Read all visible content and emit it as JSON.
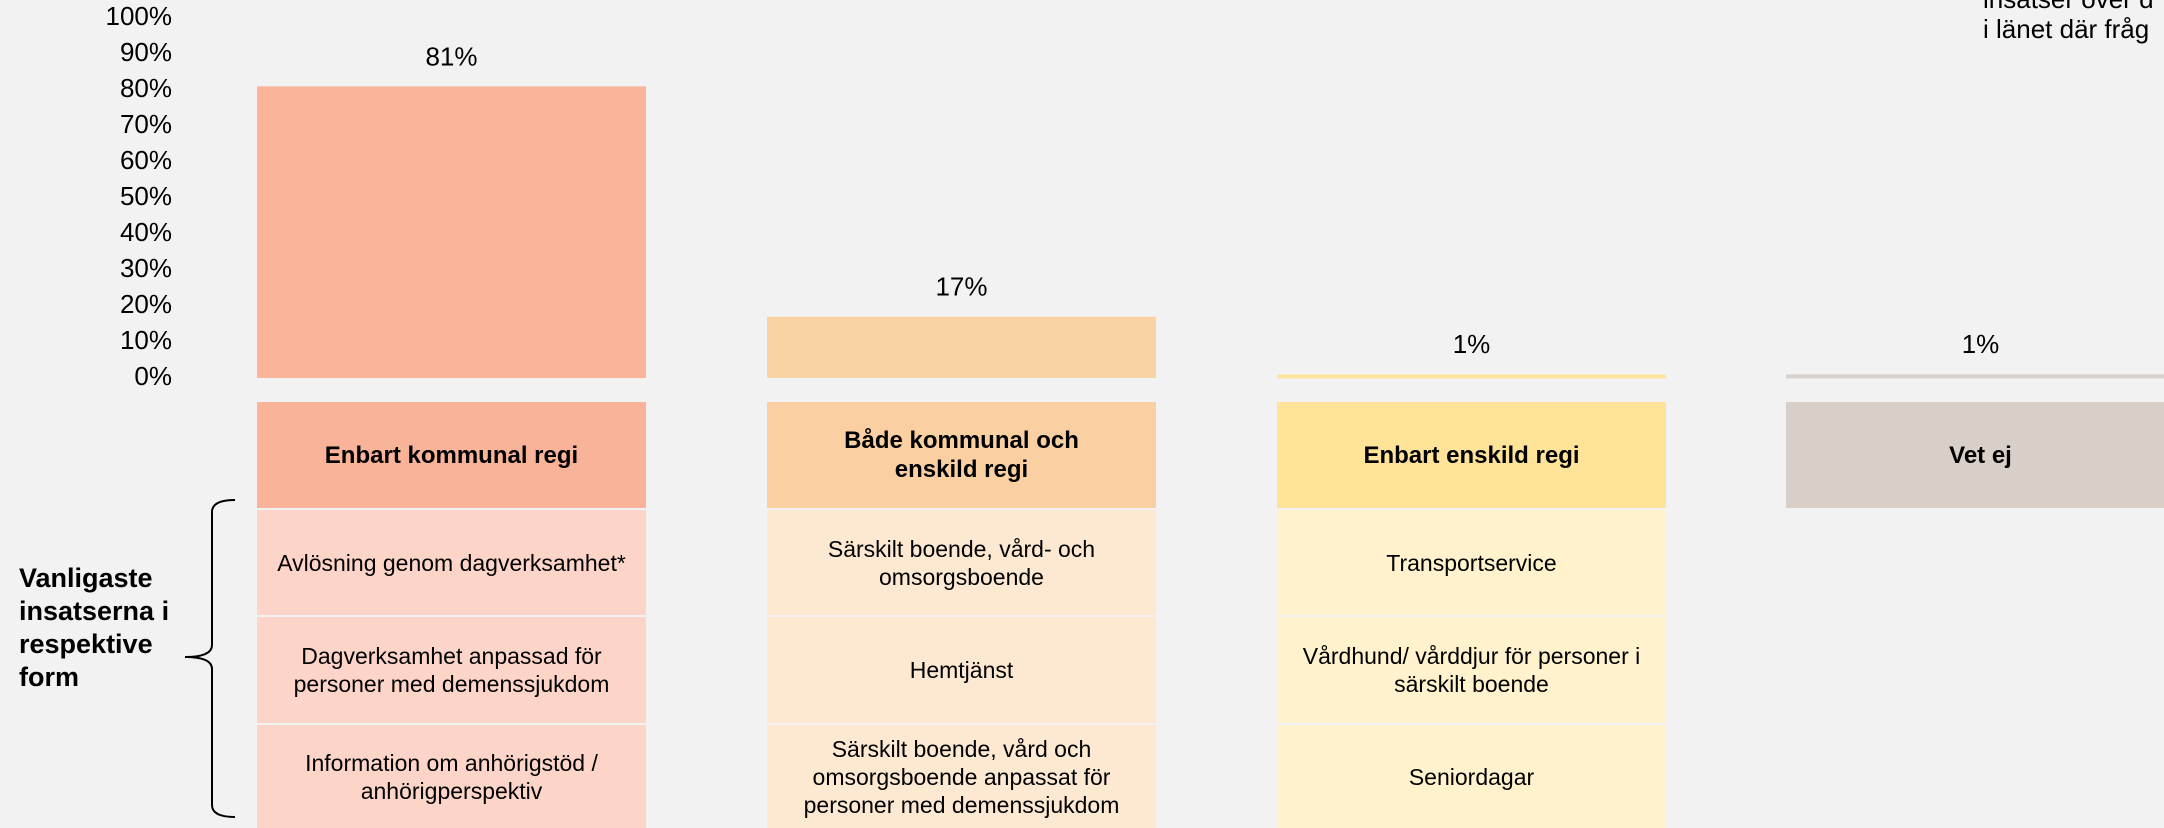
{
  "chart_data": {
    "type": "bar",
    "categories": [
      "Enbart kommunal regi",
      "Både kommunal och enskild regi",
      "Enbart enskild regi",
      "Vet ej"
    ],
    "values": [
      81,
      17,
      1,
      1
    ],
    "value_labels": [
      "81%",
      "17%",
      "1%",
      "1%"
    ],
    "colors": [
      "#F9B499",
      "#FAD3A5",
      "#FFE499",
      "#D9D2CC"
    ],
    "ylim": [
      0,
      100
    ],
    "yticks": [
      {
        "value": 0,
        "label": "0%"
      },
      {
        "value": 10,
        "label": "10%"
      },
      {
        "value": 20,
        "label": "20%"
      },
      {
        "value": 30,
        "label": "30%"
      },
      {
        "value": 40,
        "label": "40%"
      },
      {
        "value": 50,
        "label": "50%"
      },
      {
        "value": 60,
        "label": "60%"
      },
      {
        "value": 70,
        "label": "70%"
      },
      {
        "value": 80,
        "label": "80%"
      },
      {
        "value": 90,
        "label": "90%"
      },
      {
        "value": 100,
        "label": "100%"
      }
    ],
    "grid": false
  },
  "table": {
    "row_group_label": "Vanligaste insatserna i respektive form",
    "columns": [
      {
        "rows": [
          "Avlösning genom dagverksamhet*",
          "Dagverksamhet anpassad för personer med demenssjukdom",
          "Information om anhörigstöd / anhörigperspektiv"
        ]
      },
      {
        "rows": [
          "Särskilt boende, vård- och omsorgsboende",
          "Hemtjänst",
          "Särskilt boende, vård och omsorgsboende anpassat för personer med demenssjukdom"
        ]
      },
      {
        "rows": [
          "Transportservice",
          "Vårdhund/ vårddjur för personer i särskilt boende",
          "Seniordagar"
        ]
      },
      {
        "rows": []
      }
    ]
  },
  "note_lines": [
    "insatser över d",
    "i länet där fråg"
  ]
}
